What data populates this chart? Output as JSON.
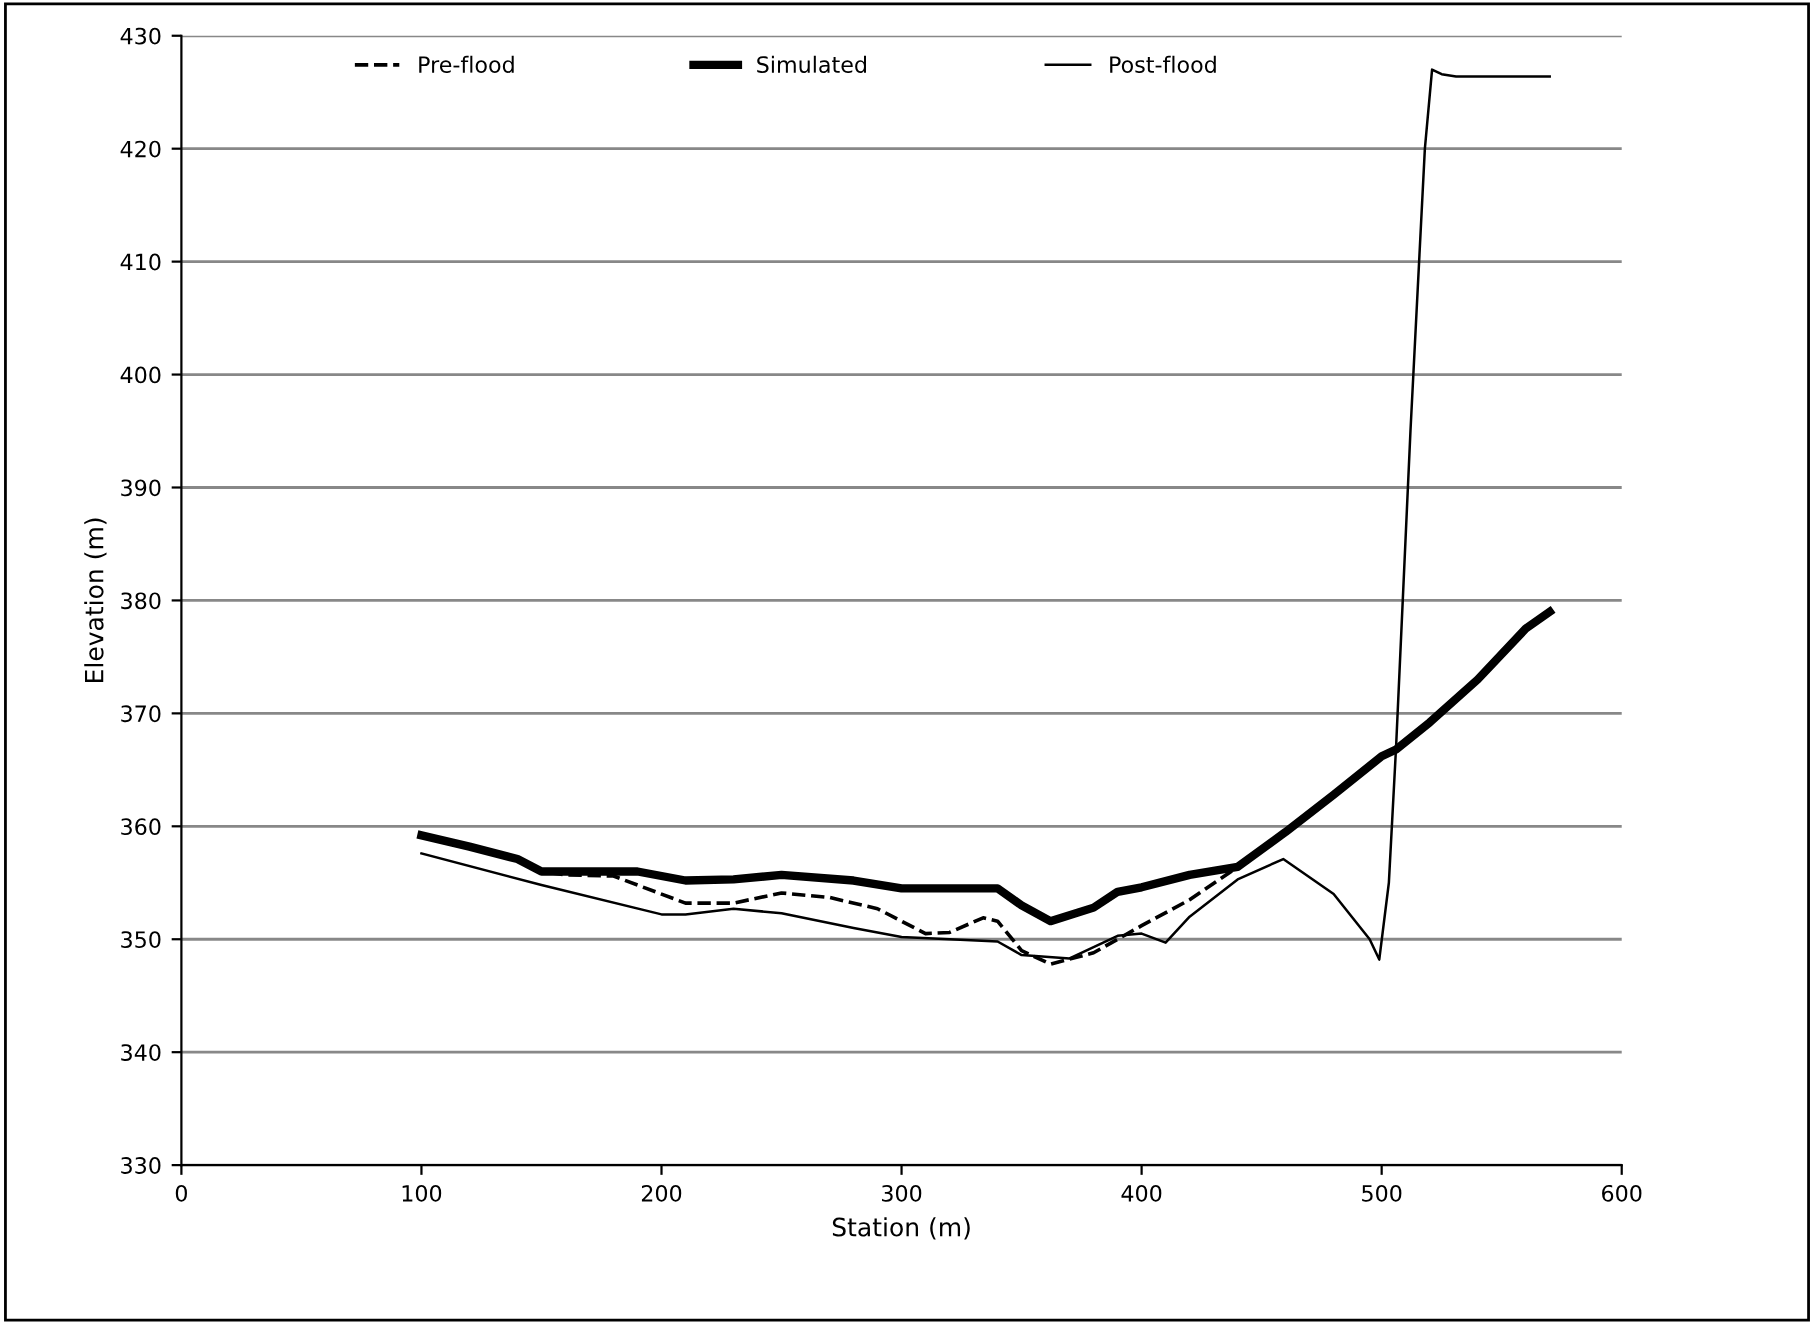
{
  "chart_data": {
    "type": "line",
    "xlabel": "Station (m)",
    "ylabel": "Elevation (m)",
    "xlim": [
      0,
      600
    ],
    "xticks": [
      0,
      100,
      200,
      300,
      400,
      500,
      600
    ],
    "ylim": [
      330,
      430
    ],
    "yticks": [
      330,
      340,
      350,
      360,
      370,
      380,
      390,
      400,
      410,
      420,
      430
    ],
    "grid": "y",
    "legend": "top",
    "marker": "none",
    "series": [
      {
        "name": "Pre-flood",
        "color": "#000000",
        "line_style": "dashed",
        "x": [
          100,
          120,
          140,
          150,
          160,
          180,
          200,
          210,
          230,
          250,
          270,
          290,
          310,
          320,
          334,
          340,
          350,
          362,
          380,
          400,
          420,
          440
        ],
        "values": [
          359.2,
          358.2,
          357.1,
          356.0,
          355.7,
          355.6,
          354.0,
          353.2,
          353.2,
          354.1,
          353.7,
          352.7,
          350.5,
          350.6,
          351.9,
          351.6,
          349.0,
          347.8,
          348.8,
          351.2,
          353.5,
          356.4
        ]
      },
      {
        "name": "Simulated",
        "color": "#000000",
        "line_style": "solid",
        "x": [
          100,
          120,
          140,
          150,
          190,
          210,
          230,
          250,
          280,
          300,
          340,
          350,
          362,
          380,
          390,
          400,
          420,
          440,
          460,
          480,
          500,
          506,
          520,
          540,
          560,
          570
        ],
        "values": [
          359.2,
          358.2,
          357.1,
          356.0,
          356.0,
          355.2,
          355.3,
          355.7,
          355.2,
          354.5,
          354.5,
          353.0,
          351.6,
          352.8,
          354.2,
          354.6,
          355.7,
          356.4,
          359.5,
          362.8,
          366.2,
          366.8,
          369.2,
          373.0,
          377.5,
          379.0
        ]
      },
      {
        "name": "Post-flood",
        "color": "#000000",
        "line_style": "solid",
        "x": [
          100,
          150,
          200,
          210,
          230,
          250,
          280,
          300,
          340,
          350,
          370,
          390,
          400,
          410,
          420,
          440,
          459,
          480,
          495,
          499,
          503,
          506,
          512,
          518,
          521,
          525,
          531,
          570
        ],
        "values": [
          357.6,
          354.8,
          352.2,
          352.2,
          352.7,
          352.3,
          351.0,
          350.2,
          349.8,
          348.6,
          348.3,
          350.3,
          350.5,
          349.7,
          352.0,
          355.3,
          357.1,
          354.0,
          350.0,
          348.2,
          355.0,
          367.0,
          395.0,
          420.0,
          427.0,
          426.6,
          426.4,
          426.4
        ]
      }
    ]
  }
}
